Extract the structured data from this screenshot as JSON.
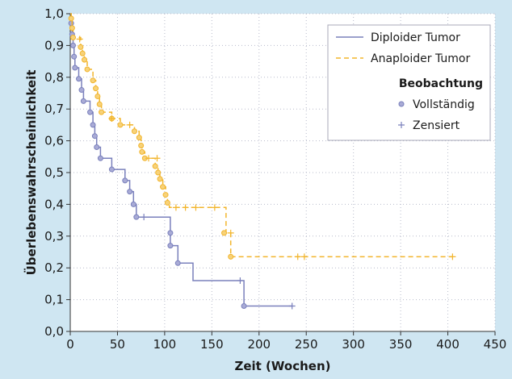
{
  "chart_data": {
    "type": "line",
    "subtype": "kaplan-meier",
    "xlabel": "Zeit (Wochen)",
    "ylabel": "Überlebenswahrscheinlichkeit",
    "xlim": [
      0,
      450
    ],
    "ylim": [
      0,
      1
    ],
    "xticks": [
      0,
      50,
      100,
      150,
      200,
      250,
      300,
      350,
      400,
      450
    ],
    "xtick_labels": [
      "0",
      "50",
      "100",
      "150",
      "200",
      "250",
      "300",
      "350",
      "400",
      "450"
    ],
    "yticks": [
      0,
      0.1,
      0.2,
      0.3,
      0.4,
      0.5,
      0.6,
      0.7,
      0.8,
      0.9,
      1.0
    ],
    "ytick_labels": [
      "0,0",
      "0,1",
      "0,2",
      "0,3",
      "0,4",
      "0,5",
      "0,6",
      "0,7",
      "0,8",
      "0,9",
      "1,0"
    ],
    "grid": true,
    "series": [
      {
        "name": "Diploider Tumor",
        "color": "#7a80bc",
        "dash": "solid",
        "steps": [
          [
            0,
            1.0
          ],
          [
            1,
            0.97
          ],
          [
            2,
            0.935
          ],
          [
            3,
            0.9
          ],
          [
            4,
            0.865
          ],
          [
            5,
            0.83
          ],
          [
            9,
            0.795
          ],
          [
            12,
            0.76
          ],
          [
            14,
            0.725
          ],
          [
            21,
            0.69
          ],
          [
            24,
            0.65
          ],
          [
            26,
            0.615
          ],
          [
            28,
            0.58
          ],
          [
            32,
            0.545
          ],
          [
            44,
            0.51
          ],
          [
            58,
            0.475
          ],
          [
            63,
            0.44
          ],
          [
            67,
            0.4
          ],
          [
            70,
            0.36
          ],
          [
            106,
            0.31
          ],
          [
            106,
            0.27
          ],
          [
            114,
            0.215
          ],
          [
            130,
            0.16
          ],
          [
            184,
            0.08
          ],
          [
            235,
            0.08
          ]
        ],
        "events": [
          [
            1,
            0.97
          ],
          [
            2,
            0.935
          ],
          [
            3,
            0.9
          ],
          [
            4,
            0.865
          ],
          [
            5,
            0.83
          ],
          [
            9,
            0.795
          ],
          [
            12,
            0.76
          ],
          [
            14,
            0.725
          ],
          [
            21,
            0.69
          ],
          [
            24,
            0.65
          ],
          [
            26,
            0.615
          ],
          [
            28,
            0.58
          ],
          [
            32,
            0.545
          ],
          [
            44,
            0.51
          ],
          [
            58,
            0.475
          ],
          [
            63,
            0.44
          ],
          [
            67,
            0.4
          ],
          [
            70,
            0.36
          ],
          [
            106,
            0.31
          ],
          [
            106,
            0.27
          ],
          [
            114,
            0.215
          ],
          [
            184,
            0.08
          ]
        ],
        "censored": [
          [
            78,
            0.36
          ],
          [
            180,
            0.16
          ],
          [
            235,
            0.08
          ]
        ]
      },
      {
        "name": "Anaploider Tumor",
        "color": "#f2b52c",
        "dash": "dashed",
        "steps": [
          [
            0,
            1.0
          ],
          [
            1,
            0.985
          ],
          [
            2,
            0.955
          ],
          [
            3,
            0.925
          ],
          [
            11,
            0.895
          ],
          [
            13,
            0.875
          ],
          [
            15,
            0.855
          ],
          [
            18,
            0.825
          ],
          [
            24,
            0.79
          ],
          [
            27,
            0.765
          ],
          [
            29,
            0.74
          ],
          [
            31,
            0.715
          ],
          [
            33,
            0.69
          ],
          [
            44,
            0.67
          ],
          [
            53,
            0.65
          ],
          [
            68,
            0.63
          ],
          [
            73,
            0.61
          ],
          [
            75,
            0.585
          ],
          [
            76,
            0.565
          ],
          [
            79,
            0.545
          ],
          [
            90,
            0.52
          ],
          [
            93,
            0.5
          ],
          [
            95,
            0.48
          ],
          [
            98,
            0.455
          ],
          [
            101,
            0.43
          ],
          [
            103,
            0.405
          ],
          [
            105,
            0.39
          ],
          [
            155,
            0.39
          ],
          [
            165,
            0.31
          ],
          [
            170,
            0.235
          ],
          [
            405,
            0.235
          ]
        ],
        "events": [
          [
            1,
            0.985
          ],
          [
            2,
            0.955
          ],
          [
            3,
            0.925
          ],
          [
            11,
            0.895
          ],
          [
            13,
            0.875
          ],
          [
            15,
            0.855
          ],
          [
            18,
            0.825
          ],
          [
            24,
            0.79
          ],
          [
            27,
            0.765
          ],
          [
            29,
            0.74
          ],
          [
            31,
            0.715
          ],
          [
            33,
            0.69
          ],
          [
            44,
            0.67
          ],
          [
            53,
            0.65
          ],
          [
            68,
            0.63
          ],
          [
            73,
            0.61
          ],
          [
            75,
            0.585
          ],
          [
            76,
            0.565
          ],
          [
            79,
            0.545
          ],
          [
            90,
            0.52
          ],
          [
            93,
            0.5
          ],
          [
            95,
            0.48
          ],
          [
            98,
            0.455
          ],
          [
            101,
            0.43
          ],
          [
            103,
            0.405
          ],
          [
            163,
            0.31
          ],
          [
            170,
            0.235
          ]
        ],
        "censored": [
          [
            10,
            0.92
          ],
          [
            44,
            0.67
          ],
          [
            63,
            0.65
          ],
          [
            83,
            0.545
          ],
          [
            92,
            0.545
          ],
          [
            112,
            0.39
          ],
          [
            122,
            0.39
          ],
          [
            133,
            0.39
          ],
          [
            153,
            0.39
          ],
          [
            170,
            0.31
          ],
          [
            241,
            0.235
          ],
          [
            248,
            0.235
          ],
          [
            405,
            0.235
          ]
        ]
      }
    ],
    "legend": {
      "placement": "top-right",
      "series_labels": [
        "Diploider Tumor",
        "Anaploider Tumor"
      ],
      "observation_title": "Beobachtung",
      "observation_labels": [
        "Vollständig",
        "Zensiert"
      ]
    }
  }
}
